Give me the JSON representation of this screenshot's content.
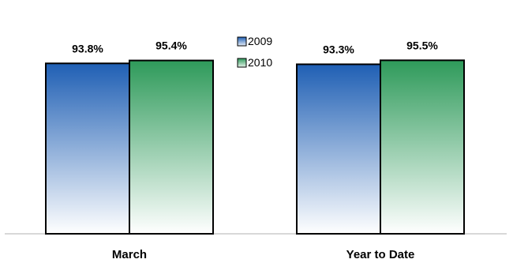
{
  "chart_data": {
    "type": "bar",
    "categories": [
      "March",
      "Year to Date"
    ],
    "series": [
      {
        "name": "2009",
        "values": [
          93.8,
          93.3
        ],
        "labels": [
          "93.8%",
          "93.3%"
        ],
        "color": "#1f5fb4"
      },
      {
        "name": "2010",
        "values": [
          95.4,
          95.5
        ],
        "labels": [
          "95.4%",
          "95.5%"
        ],
        "color": "#2e9a5a"
      }
    ],
    "legend_position": "top-center",
    "grid": false
  }
}
